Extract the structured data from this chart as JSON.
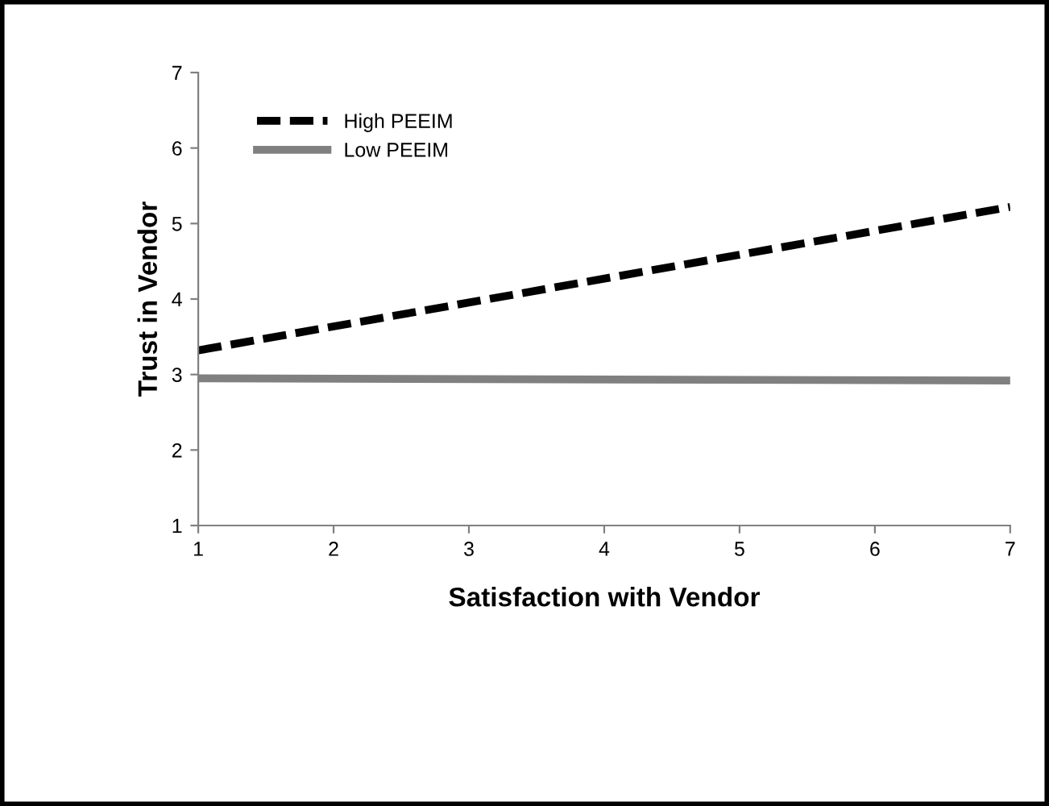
{
  "chart_data": {
    "type": "line",
    "xlabel": "Satisfaction with Vendor",
    "ylabel": "Trust in Vendor",
    "xlim": [
      1,
      7
    ],
    "xticks": [
      1,
      2,
      3,
      4,
      5,
      6,
      7
    ],
    "ylim": [
      1,
      7
    ],
    "yticks": [
      1,
      2,
      3,
      4,
      5,
      6,
      7
    ],
    "x": [
      1,
      7
    ],
    "series": [
      {
        "name": "High PEEIM",
        "color": "#000000",
        "values": [
          3.32,
          5.22
        ],
        "line_style": "dashed"
      },
      {
        "name": "Low PEEIM",
        "color": "#808080",
        "values": [
          2.95,
          2.92
        ],
        "line_style": "solid"
      }
    ],
    "legend": "top left",
    "grid": false,
    "marker": "none"
  }
}
